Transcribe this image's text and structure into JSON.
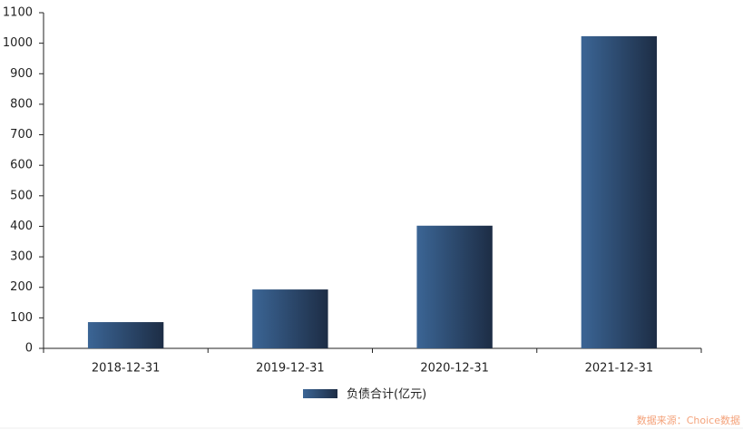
{
  "chart_data": {
    "type": "bar",
    "categories": [
      "2018-12-31",
      "2019-12-31",
      "2020-12-31",
      "2021-12-31"
    ],
    "series": [
      {
        "name": "负债合计(亿元)",
        "gradient": [
          "#3b6595",
          "#1d2d45"
        ],
        "values": [
          86,
          193,
          402,
          1023
        ]
      }
    ],
    "ylim": [
      0,
      1100
    ],
    "yticks": [
      0,
      100,
      200,
      300,
      400,
      500,
      600,
      700,
      800,
      900,
      1000,
      1100
    ],
    "grid": false,
    "legend": "bottom",
    "source": "数据来源：Choice数据"
  }
}
